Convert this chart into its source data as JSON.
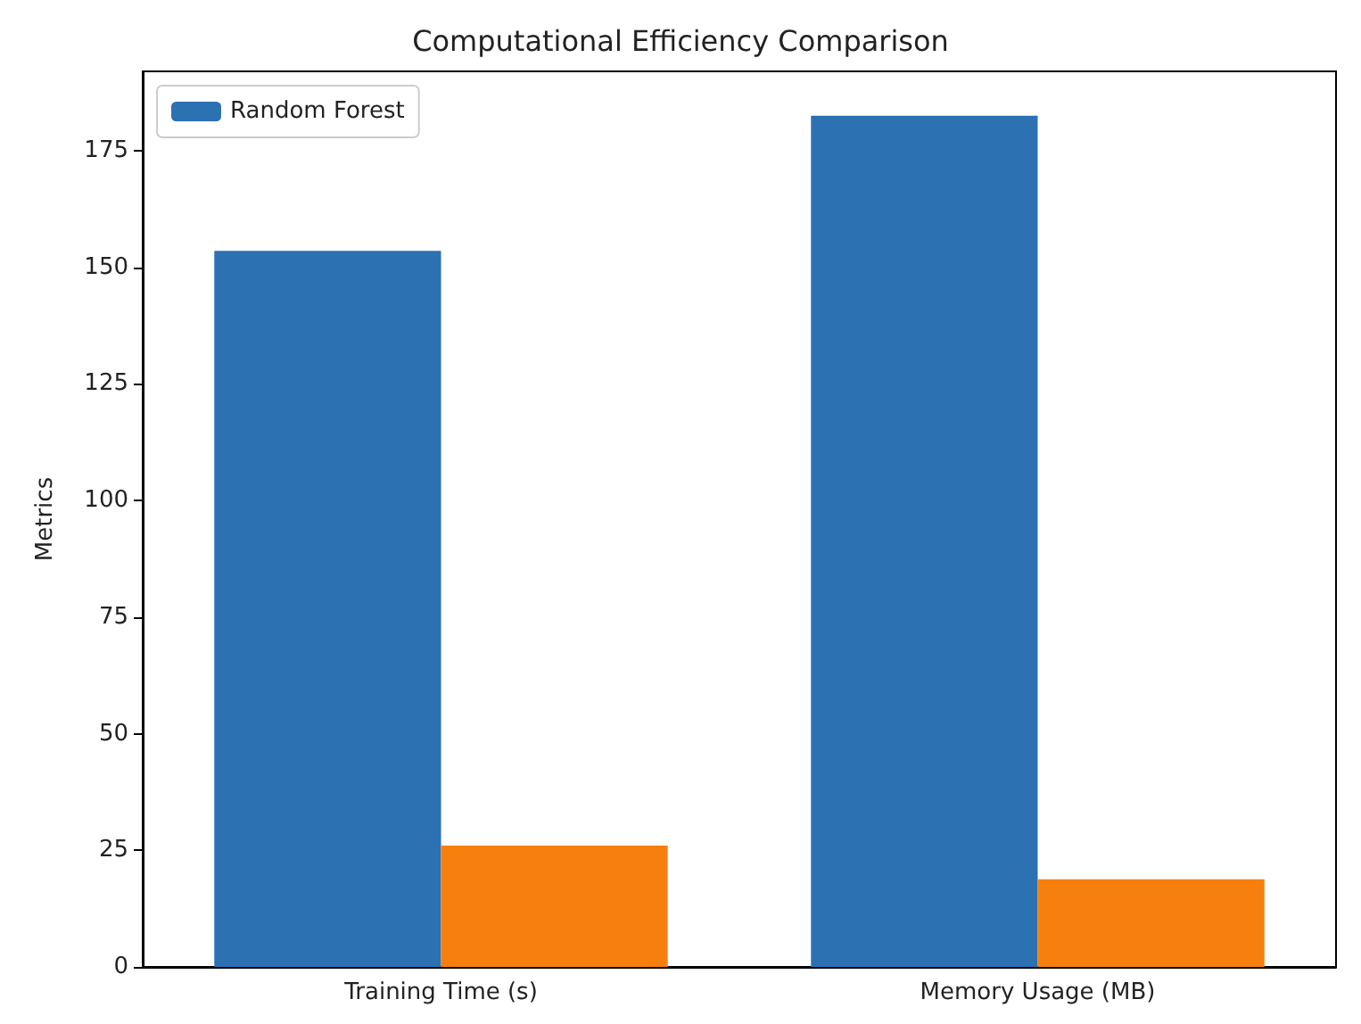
{
  "chart_data": {
    "type": "bar",
    "title": "Computational Efficiency Comparison",
    "ylabel": "Metrics",
    "categories": [
      "Training Time (s)",
      "Memory Usage (MB)"
    ],
    "series": [
      {
        "name": "Random Forest",
        "color": "#2c71b2",
        "values": [
          153.5,
          182.5
        ]
      },
      {
        "color": "#f77f0e",
        "values": [
          26,
          18.8
        ]
      }
    ],
    "ylim": [
      0,
      192
    ],
    "yticks": [
      0,
      25,
      50,
      75,
      100,
      125,
      150,
      175
    ],
    "grid": false,
    "legend": "top left"
  }
}
